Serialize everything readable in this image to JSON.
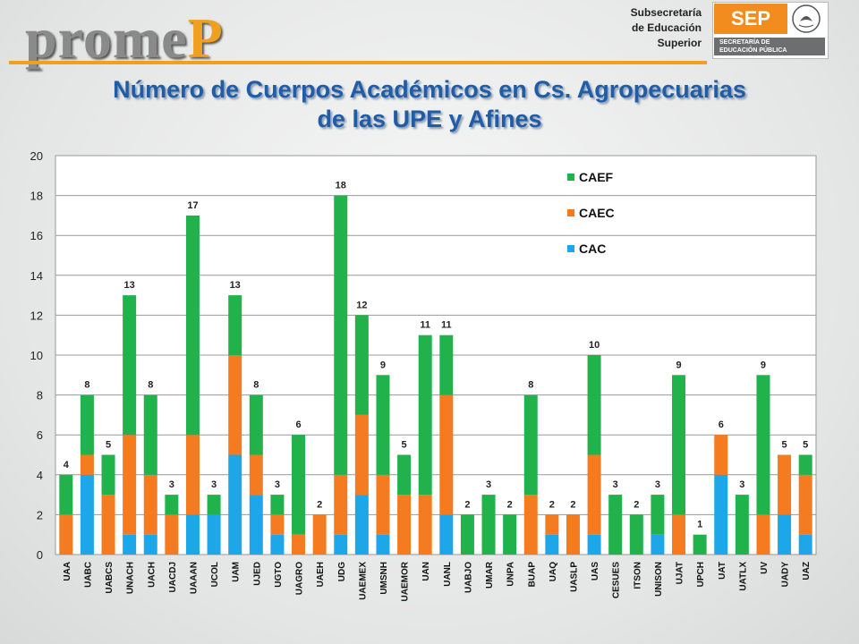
{
  "header": {
    "logo_part1": "prome",
    "logo_part2": "P",
    "subsecretaria_lines": [
      "Subsecretaría",
      "de Educación",
      "Superior"
    ],
    "sep_label": "SEP",
    "sep_strip_lines": [
      "SECRETARÍA DE",
      "EDUCACIÓN PÚBLICA"
    ],
    "accent_color": "#f0a020"
  },
  "title_lines": [
    "Número de Cuerpos Académicos en Cs. Agropecuarias",
    "de las UPE y Afines"
  ],
  "chart_data": {
    "type": "bar",
    "stacked": true,
    "categories": [
      "UAA",
      "UABC",
      "UABCS",
      "UNACH",
      "UACH",
      "UACDJ",
      "UAAAN",
      "UCOL",
      "UAM",
      "UJED",
      "UGTO",
      "UAGRO",
      "UAEH",
      "UDG",
      "UAEMEX",
      "UMSNH",
      "UAEMOR",
      "UAN",
      "UANL",
      "UABJO",
      "UMAR",
      "UNPA",
      "BUAP",
      "UAQ",
      "UASLP",
      "UAS",
      "CESUES",
      "ITSON",
      "UNISON",
      "UJAT",
      "UPCH",
      "UAT",
      "UATLX",
      "UV",
      "UADY",
      "UAZ"
    ],
    "series": [
      {
        "name": "CAC",
        "color": "#1ea7e8",
        "values": [
          0,
          4,
          0,
          1,
          1,
          0,
          2,
          2,
          5,
          3,
          1,
          0,
          0,
          1,
          3,
          1,
          0,
          0,
          2,
          0,
          0,
          0,
          0,
          1,
          0,
          1,
          0,
          0,
          1,
          0,
          0,
          4,
          0,
          0,
          2,
          1
        ]
      },
      {
        "name": "CAEC",
        "color": "#f47b20",
        "values": [
          2,
          1,
          3,
          5,
          3,
          2,
          4,
          0,
          5,
          2,
          1,
          1,
          2,
          3,
          4,
          3,
          3,
          3,
          6,
          0,
          0,
          0,
          3,
          1,
          2,
          4,
          0,
          0,
          0,
          2,
          0,
          2,
          0,
          2,
          3,
          3
        ]
      },
      {
        "name": "CAEF",
        "color": "#21b24b",
        "values": [
          2,
          3,
          2,
          7,
          4,
          1,
          11,
          1,
          3,
          3,
          1,
          5,
          0,
          14,
          5,
          5,
          2,
          8,
          3,
          2,
          3,
          2,
          5,
          0,
          0,
          5,
          3,
          2,
          2,
          7,
          1,
          0,
          3,
          7,
          0,
          1
        ]
      }
    ],
    "totals": [
      4,
      8,
      5,
      13,
      8,
      3,
      17,
      3,
      13,
      8,
      3,
      6,
      2,
      18,
      12,
      9,
      5,
      11,
      11,
      2,
      3,
      2,
      8,
      2,
      2,
      10,
      3,
      2,
      3,
      9,
      1,
      6,
      3,
      9,
      5,
      5
    ],
    "ylim": [
      0,
      20
    ],
    "yticks": [
      0,
      2,
      4,
      6,
      8,
      10,
      12,
      14,
      16,
      18,
      20
    ],
    "legend_order": [
      "CAEF",
      "CAEC",
      "CAC"
    ],
    "legend_position": "top-right",
    "grid": true
  }
}
